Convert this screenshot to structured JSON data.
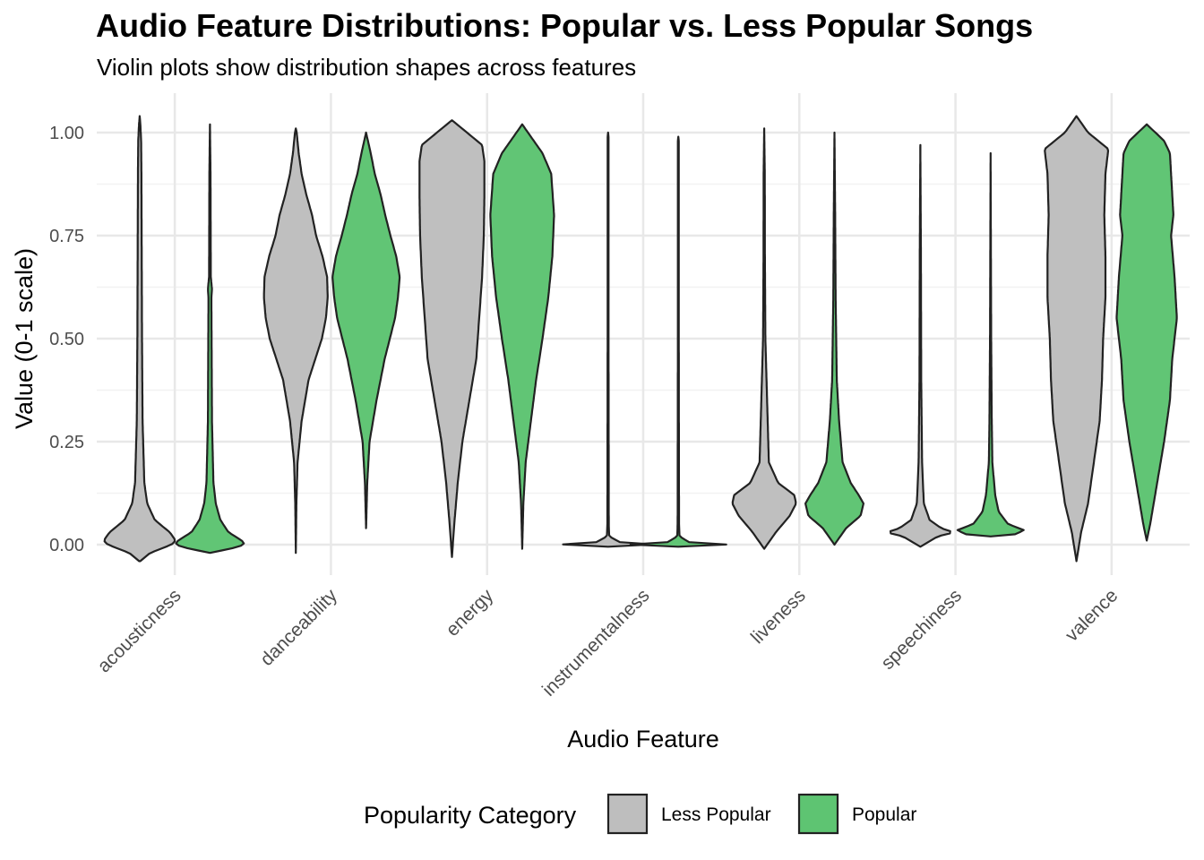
{
  "chart_data": {
    "type": "violin",
    "title": "Audio Feature Distributions: Popular vs. Less Popular Songs",
    "subtitle": "Violin plots show distribution shapes across features",
    "xlabel": "Audio Feature",
    "ylabel": "Value (0-1 scale)",
    "ylim": [
      -0.09,
      1.09
    ],
    "yticks": [
      "0.00",
      "0.25",
      "0.50",
      "0.75",
      "1.00"
    ],
    "grid": true,
    "legend": {
      "title": "Popularity Category",
      "position": "bottom",
      "entries": [
        {
          "label": "Less Popular",
          "color": "#bebebe"
        },
        {
          "label": "Popular",
          "color": "#5ec472"
        }
      ]
    },
    "categories": [
      "acousticness",
      "danceability",
      "energy",
      "instrumentalness",
      "liveness",
      "speechiness",
      "valence"
    ],
    "series": [
      {
        "name": "Less Popular",
        "color": "#bebebe",
        "violins": [
          {
            "feature": "acousticness",
            "min": -0.04,
            "max": 1.04,
            "profile": [
              [
                -0.04,
                0.01
              ],
              [
                -0.02,
                0.18
              ],
              [
                0.0,
                0.55
              ],
              [
                0.01,
                0.62
              ],
              [
                0.03,
                0.52
              ],
              [
                0.06,
                0.26
              ],
              [
                0.1,
                0.13
              ],
              [
                0.15,
                0.08
              ],
              [
                0.3,
                0.05
              ],
              [
                0.5,
                0.04
              ],
              [
                0.7,
                0.035
              ],
              [
                0.9,
                0.03
              ],
              [
                0.98,
                0.025
              ],
              [
                1.02,
                0.012
              ],
              [
                1.04,
                0.0
              ]
            ]
          },
          {
            "feature": "danceability",
            "min": -0.02,
            "max": 1.01,
            "profile": [
              [
                -0.02,
                0.0
              ],
              [
                0.1,
                0.01
              ],
              [
                0.2,
                0.03
              ],
              [
                0.3,
                0.1
              ],
              [
                0.4,
                0.22
              ],
              [
                0.5,
                0.45
              ],
              [
                0.55,
                0.52
              ],
              [
                0.6,
                0.55
              ],
              [
                0.65,
                0.54
              ],
              [
                0.7,
                0.46
              ],
              [
                0.75,
                0.35
              ],
              [
                0.8,
                0.28
              ],
              [
                0.85,
                0.18
              ],
              [
                0.9,
                0.1
              ],
              [
                0.95,
                0.05
              ],
              [
                1.0,
                0.015
              ],
              [
                1.01,
                0.0
              ]
            ]
          },
          {
            "feature": "energy",
            "min": -0.03,
            "max": 1.03,
            "profile": [
              [
                -0.03,
                0.0
              ],
              [
                0.05,
                0.04
              ],
              [
                0.15,
                0.1
              ],
              [
                0.25,
                0.18
              ],
              [
                0.35,
                0.3
              ],
              [
                0.45,
                0.42
              ],
              [
                0.55,
                0.47
              ],
              [
                0.65,
                0.52
              ],
              [
                0.75,
                0.55
              ],
              [
                0.85,
                0.56
              ],
              [
                0.93,
                0.56
              ],
              [
                0.97,
                0.52
              ],
              [
                1.0,
                0.26
              ],
              [
                1.03,
                0.0
              ]
            ]
          },
          {
            "feature": "instrumentalness",
            "min": -0.005,
            "max": 1.0,
            "profile": [
              [
                -0.005,
                0.0
              ],
              [
                0.0,
                0.85
              ],
              [
                0.005,
                0.22
              ],
              [
                0.02,
                0.02
              ],
              [
                0.05,
                0.012
              ],
              [
                0.5,
                0.008
              ],
              [
                0.99,
                0.008
              ],
              [
                1.0,
                0.0
              ]
            ]
          },
          {
            "feature": "liveness",
            "min": -0.01,
            "max": 1.01,
            "profile": [
              [
                -0.01,
                0.0
              ],
              [
                0.03,
                0.2
              ],
              [
                0.07,
                0.44
              ],
              [
                0.1,
                0.55
              ],
              [
                0.12,
                0.52
              ],
              [
                0.15,
                0.24
              ],
              [
                0.2,
                0.08
              ],
              [
                0.3,
                0.06
              ],
              [
                0.4,
                0.04
              ],
              [
                0.5,
                0.02
              ],
              [
                0.7,
                0.012
              ],
              [
                0.9,
                0.01
              ],
              [
                1.01,
                0.0
              ]
            ]
          },
          {
            "feature": "speechiness",
            "min": -0.005,
            "max": 0.97,
            "profile": [
              [
                -0.005,
                0.0
              ],
              [
                0.02,
                0.3
              ],
              [
                0.03,
                0.58
              ],
              [
                0.04,
                0.36
              ],
              [
                0.06,
                0.16
              ],
              [
                0.1,
                0.06
              ],
              [
                0.2,
                0.03
              ],
              [
                0.4,
                0.015
              ],
              [
                0.7,
                0.01
              ],
              [
                0.97,
                0.0
              ]
            ]
          },
          {
            "feature": "valence",
            "min": -0.04,
            "max": 1.04,
            "profile": [
              [
                -0.04,
                0.0
              ],
              [
                0.03,
                0.08
              ],
              [
                0.1,
                0.2
              ],
              [
                0.2,
                0.3
              ],
              [
                0.3,
                0.4
              ],
              [
                0.4,
                0.44
              ],
              [
                0.5,
                0.46
              ],
              [
                0.6,
                0.5
              ],
              [
                0.7,
                0.5
              ],
              [
                0.8,
                0.48
              ],
              [
                0.9,
                0.5
              ],
              [
                0.96,
                0.55
              ],
              [
                1.0,
                0.2
              ],
              [
                1.04,
                0.0
              ]
            ]
          }
        ]
      },
      {
        "name": "Popular",
        "color": "#5ec472",
        "violins": [
          {
            "feature": "acousticness",
            "min": -0.02,
            "max": 1.02,
            "profile": [
              [
                -0.02,
                0.0
              ],
              [
                -0.01,
                0.35
              ],
              [
                0.0,
                0.6
              ],
              [
                0.01,
                0.55
              ],
              [
                0.03,
                0.32
              ],
              [
                0.06,
                0.18
              ],
              [
                0.1,
                0.1
              ],
              [
                0.15,
                0.06
              ],
              [
                0.3,
                0.035
              ],
              [
                0.6,
                0.025
              ],
              [
                0.62,
                0.035
              ],
              [
                0.65,
                0.015
              ],
              [
                0.9,
                0.01
              ],
              [
                1.02,
                0.0
              ]
            ]
          },
          {
            "feature": "danceability",
            "min": 0.04,
            "max": 1.0,
            "profile": [
              [
                0.04,
                0.0
              ],
              [
                0.15,
                0.02
              ],
              [
                0.25,
                0.06
              ],
              [
                0.35,
                0.18
              ],
              [
                0.45,
                0.32
              ],
              [
                0.55,
                0.5
              ],
              [
                0.6,
                0.55
              ],
              [
                0.65,
                0.58
              ],
              [
                0.7,
                0.52
              ],
              [
                0.75,
                0.42
              ],
              [
                0.8,
                0.33
              ],
              [
                0.85,
                0.25
              ],
              [
                0.9,
                0.15
              ],
              [
                0.95,
                0.08
              ],
              [
                1.0,
                0.0
              ]
            ]
          },
          {
            "feature": "energy",
            "min": -0.01,
            "max": 1.02,
            "profile": [
              [
                -0.01,
                0.0
              ],
              [
                0.1,
                0.02
              ],
              [
                0.2,
                0.06
              ],
              [
                0.3,
                0.15
              ],
              [
                0.4,
                0.24
              ],
              [
                0.5,
                0.35
              ],
              [
                0.6,
                0.45
              ],
              [
                0.7,
                0.52
              ],
              [
                0.8,
                0.55
              ],
              [
                0.9,
                0.5
              ],
              [
                0.95,
                0.35
              ],
              [
                1.0,
                0.1
              ],
              [
                1.02,
                0.0
              ]
            ]
          },
          {
            "feature": "instrumentalness",
            "min": -0.005,
            "max": 0.99,
            "profile": [
              [
                -0.005,
                0.0
              ],
              [
                0.0,
                0.9
              ],
              [
                0.005,
                0.2
              ],
              [
                0.02,
                0.02
              ],
              [
                0.05,
                0.012
              ],
              [
                0.5,
                0.008
              ],
              [
                0.98,
                0.008
              ],
              [
                0.99,
                0.0
              ]
            ]
          },
          {
            "feature": "liveness",
            "min": 0.0,
            "max": 1.0,
            "profile": [
              [
                0.0,
                0.0
              ],
              [
                0.04,
                0.2
              ],
              [
                0.07,
                0.45
              ],
              [
                0.1,
                0.5
              ],
              [
                0.12,
                0.42
              ],
              [
                0.15,
                0.28
              ],
              [
                0.2,
                0.14
              ],
              [
                0.3,
                0.08
              ],
              [
                0.4,
                0.04
              ],
              [
                0.6,
                0.02
              ],
              [
                0.8,
                0.012
              ],
              [
                1.0,
                0.0
              ]
            ]
          },
          {
            "feature": "speechiness",
            "min": 0.02,
            "max": 0.95,
            "profile": [
              [
                0.02,
                0.0
              ],
              [
                0.025,
                0.42
              ],
              [
                0.035,
                0.58
              ],
              [
                0.05,
                0.3
              ],
              [
                0.08,
                0.14
              ],
              [
                0.12,
                0.08
              ],
              [
                0.2,
                0.03
              ],
              [
                0.3,
                0.02
              ],
              [
                0.5,
                0.01
              ],
              [
                0.95,
                0.0
              ]
            ]
          },
          {
            "feature": "valence",
            "min": 0.01,
            "max": 1.02,
            "profile": [
              [
                0.01,
                0.0
              ],
              [
                0.05,
                0.06
              ],
              [
                0.15,
                0.18
              ],
              [
                0.25,
                0.3
              ],
              [
                0.35,
                0.4
              ],
              [
                0.45,
                0.44
              ],
              [
                0.55,
                0.52
              ],
              [
                0.65,
                0.48
              ],
              [
                0.75,
                0.42
              ],
              [
                0.8,
                0.46
              ],
              [
                0.85,
                0.44
              ],
              [
                0.9,
                0.42
              ],
              [
                0.95,
                0.4
              ],
              [
                0.98,
                0.3
              ],
              [
                1.0,
                0.15
              ],
              [
                1.02,
                0.0
              ]
            ]
          }
        ]
      }
    ]
  }
}
